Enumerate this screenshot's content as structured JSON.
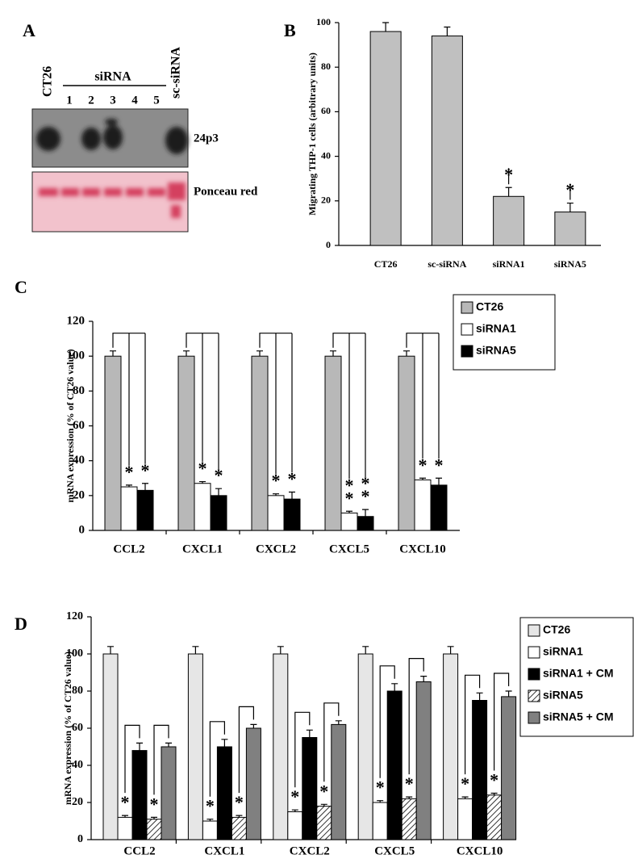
{
  "blot": {
    "panel": "A",
    "lanes": [
      "CT26",
      "1",
      "2",
      "3",
      "4",
      "5",
      "sc-siRNA"
    ],
    "group_label": "siRNA",
    "rows": [
      "24p3",
      "Ponceau red"
    ]
  },
  "chart_data": [
    {
      "panel": "B",
      "type": "bar",
      "ylabel": "Migrating THP-1 cells (arbitrary units)",
      "categories": [
        "CT26",
        "sc-siRNA",
        "siRNA1",
        "siRNA5"
      ],
      "values": [
        96,
        94,
        22,
        15
      ],
      "errors": [
        4,
        4,
        4,
        4
      ],
      "markers": [
        null,
        null,
        "*",
        "*"
      ],
      "color": "#c0c0c0",
      "ylim": [
        0,
        100
      ],
      "yticks": [
        0,
        20,
        40,
        60,
        80,
        100
      ],
      "brackets": "control"
    },
    {
      "panel": "C",
      "type": "bar",
      "ylabel": "mRNA expression (% of CT26 value)",
      "categories": [
        "CCL2",
        "CXCL1",
        "CXCL2",
        "CXCL5",
        "CXCL10"
      ],
      "series": [
        {
          "name": "CT26",
          "color": "#b8b8b8",
          "values": [
            100,
            100,
            100,
            100,
            100
          ],
          "errors": [
            3,
            3,
            3,
            3,
            3
          ]
        },
        {
          "name": "siRNA1",
          "color": "#ffffff",
          "values": [
            25,
            27,
            20,
            10,
            29
          ],
          "errors": [
            1,
            1,
            1,
            1,
            1
          ],
          "markers": [
            "*",
            "*",
            "*",
            "**",
            "*"
          ]
        },
        {
          "name": "siRNA5",
          "color": "#000000",
          "values": [
            23,
            20,
            18,
            8,
            26
          ],
          "errors": [
            4,
            4,
            4,
            4,
            4
          ],
          "markers": [
            "*",
            "*",
            "*",
            "**",
            "*"
          ]
        }
      ],
      "ylim": [
        0,
        120
      ],
      "yticks": [
        0,
        20,
        40,
        60,
        80,
        100,
        120
      ],
      "legend": "upper right",
      "brackets": "control"
    },
    {
      "panel": "D",
      "type": "bar",
      "ylabel": "mRNA expression (% of CT26 value)",
      "categories": [
        "CCL2",
        "CXCL1",
        "CXCL2",
        "CXCL5",
        "CXCL10"
      ],
      "series": [
        {
          "name": "CT26",
          "color": "#e6e6e6",
          "values": [
            100,
            100,
            100,
            100,
            100
          ],
          "errors": [
            4,
            4,
            4,
            4,
            4
          ]
        },
        {
          "name": "siRNA1",
          "color": "#ffffff",
          "values": [
            12,
            10,
            15,
            20,
            22
          ],
          "errors": [
            1,
            1,
            1,
            1,
            1
          ],
          "markers": [
            "*",
            "*",
            "*",
            "*",
            "*"
          ]
        },
        {
          "name": "siRNA1 + CM",
          "color": "#000000",
          "values": [
            48,
            50,
            55,
            80,
            75
          ],
          "errors": [
            4,
            4,
            4,
            4,
            4
          ]
        },
        {
          "name": "siRNA5",
          "color": "#000000",
          "pattern": "hatch",
          "values": [
            11,
            12,
            18,
            22,
            24
          ],
          "errors": [
            1,
            1,
            1,
            1,
            1
          ],
          "markers": [
            "*",
            "*",
            "*",
            "*",
            "*"
          ]
        },
        {
          "name": "siRNA5 + CM",
          "color": "#808080",
          "values": [
            50,
            60,
            62,
            85,
            77
          ],
          "errors": [
            2,
            2,
            2,
            3,
            3
          ]
        }
      ],
      "ylim": [
        0,
        120
      ],
      "yticks": [
        0,
        20,
        40,
        60,
        80,
        100,
        120
      ],
      "legend": "upper right",
      "brackets": "pairs"
    }
  ]
}
